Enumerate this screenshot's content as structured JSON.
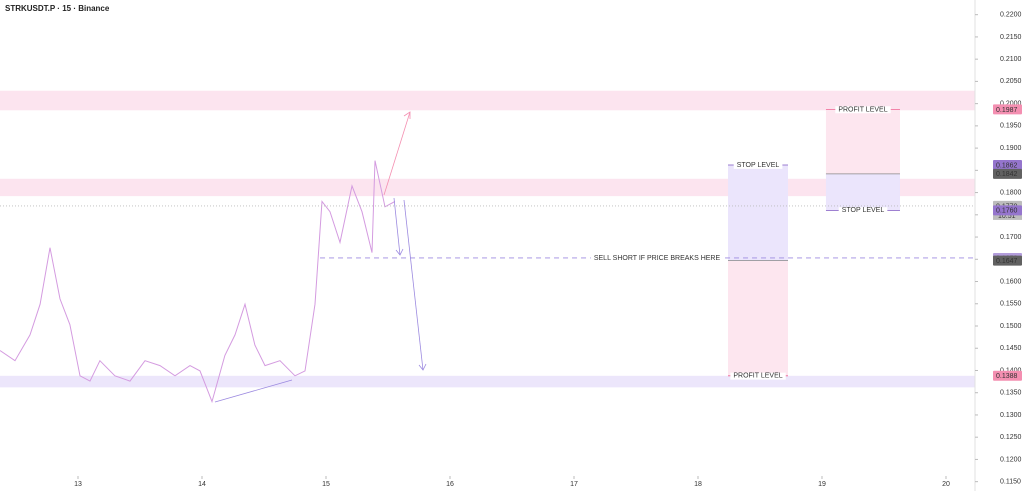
{
  "chart_data": {
    "type": "line",
    "title": "STRKUSDT.P · 15 · Binance",
    "color": "#d49be0",
    "x": [
      12.371,
      12.492,
      12.613,
      12.694,
      12.774,
      12.855,
      12.935,
      13.016,
      13.097,
      13.177,
      13.298,
      13.419,
      13.54,
      13.661,
      13.782,
      13.903,
      13.984,
      14.081,
      14.185,
      14.266,
      14.347,
      14.427,
      14.508,
      14.629,
      14.75,
      14.831,
      14.911,
      14.968,
      15.032,
      15.113,
      15.21,
      15.29,
      15.371,
      15.395,
      15.476,
      15.556
    ],
    "values": [
      0.1445,
      0.1422,
      0.148,
      0.1549,
      0.1676,
      0.1561,
      0.1503,
      0.1388,
      0.1376,
      0.1422,
      0.1388,
      0.1376,
      0.1422,
      0.1411,
      0.1388,
      0.1411,
      0.1399,
      0.133,
      0.1434,
      0.148,
      0.1549,
      0.1457,
      0.1411,
      0.1422,
      0.1388,
      0.1399,
      0.1549,
      0.178,
      0.1757,
      0.1688,
      0.1815,
      0.1757,
      0.1665,
      0.1872,
      0.1768,
      0.178
    ],
    "xlim": [
      12.371,
      20.234
    ],
    "xticks": [
      13,
      14,
      15,
      16,
      17,
      18,
      19,
      20
    ],
    "ylim": [
      0.1129,
      0.2233
    ],
    "yticks": [
      {
        "value": 0.22,
        "label": "0.2200"
      },
      {
        "value": 0.215,
        "label": "0.2150"
      },
      {
        "value": 0.21,
        "label": "0.2100"
      },
      {
        "value": 0.205,
        "label": "0.2050"
      },
      {
        "value": 0.2,
        "label": "0.2000"
      },
      {
        "value": 0.195,
        "label": "0.1950"
      },
      {
        "value": 0.19,
        "label": "0.1900"
      },
      {
        "value": 0.185,
        "label": "0.1850"
      },
      {
        "value": 0.18,
        "label": "0.1800"
      },
      {
        "value": 0.175,
        "label": "0.1750"
      },
      {
        "value": 0.17,
        "label": "0.1700"
      },
      {
        "value": 0.165,
        "label": "0.1650"
      },
      {
        "value": 0.16,
        "label": "0.1600"
      },
      {
        "value": 0.155,
        "label": "0.1550"
      },
      {
        "value": 0.15,
        "label": "0.1500"
      },
      {
        "value": 0.145,
        "label": "0.1450"
      },
      {
        "value": 0.14,
        "label": "0.1400"
      },
      {
        "value": 0.135,
        "label": "0.1350"
      },
      {
        "value": 0.13,
        "label": "0.1300"
      },
      {
        "value": 0.125,
        "label": "0.1250"
      },
      {
        "value": 0.12,
        "label": "0.1200"
      },
      {
        "value": 0.115,
        "label": "0.1150"
      }
    ],
    "zones": [
      {
        "top": 0.2029,
        "bottom": 0.1985,
        "color": "#fce4ef"
      },
      {
        "top": 0.1831,
        "bottom": 0.1792,
        "color": "#fce4ef"
      },
      {
        "top": 0.1388,
        "bottom": 0.1362,
        "color": "#ece6fb"
      }
    ],
    "positions": [
      {
        "x0": 18.242,
        "x1": 18.726,
        "stop": 0.1862,
        "entry": 0.1647,
        "target": 0.1388,
        "stop_label": "STOP LEVEL",
        "target_label": "PROFIT LEVEL"
      },
      {
        "x0": 19.032,
        "x1": 19.629,
        "stop": 0.176,
        "entry": 0.1842,
        "target": 0.1987,
        "stop_label": "STOP LEVEL",
        "target_label": "PROFIT LEVEL"
      }
    ],
    "sell_line": {
      "value": 0.1653,
      "x0": 14.952,
      "label": "SELL SHORT IF PRICE BREAKS HERE"
    },
    "last_price": {
      "value": 0.177,
      "time": "10:51"
    },
    "price_labels": [
      {
        "value": 0.1987,
        "label": "0.1987",
        "color": "#f48fb1"
      },
      {
        "value": 0.1862,
        "label": "0.1862",
        "color": "#9575cd"
      },
      {
        "value": 0.1842,
        "label": "0.1842",
        "color": "#616161"
      },
      {
        "value": 0.177,
        "label": "0.1770",
        "color": "#bdbdbd"
      },
      {
        "value": 0.176,
        "label": "0.1760",
        "color": "#9575cd"
      },
      {
        "value": 0.1653,
        "label": "0.1653",
        "color": "#b39ddb"
      },
      {
        "value": 0.1647,
        "label": "0.1647",
        "color": "#616161"
      },
      {
        "value": 0.1388,
        "label": "0.1388",
        "color": "#f48fb1"
      }
    ]
  }
}
